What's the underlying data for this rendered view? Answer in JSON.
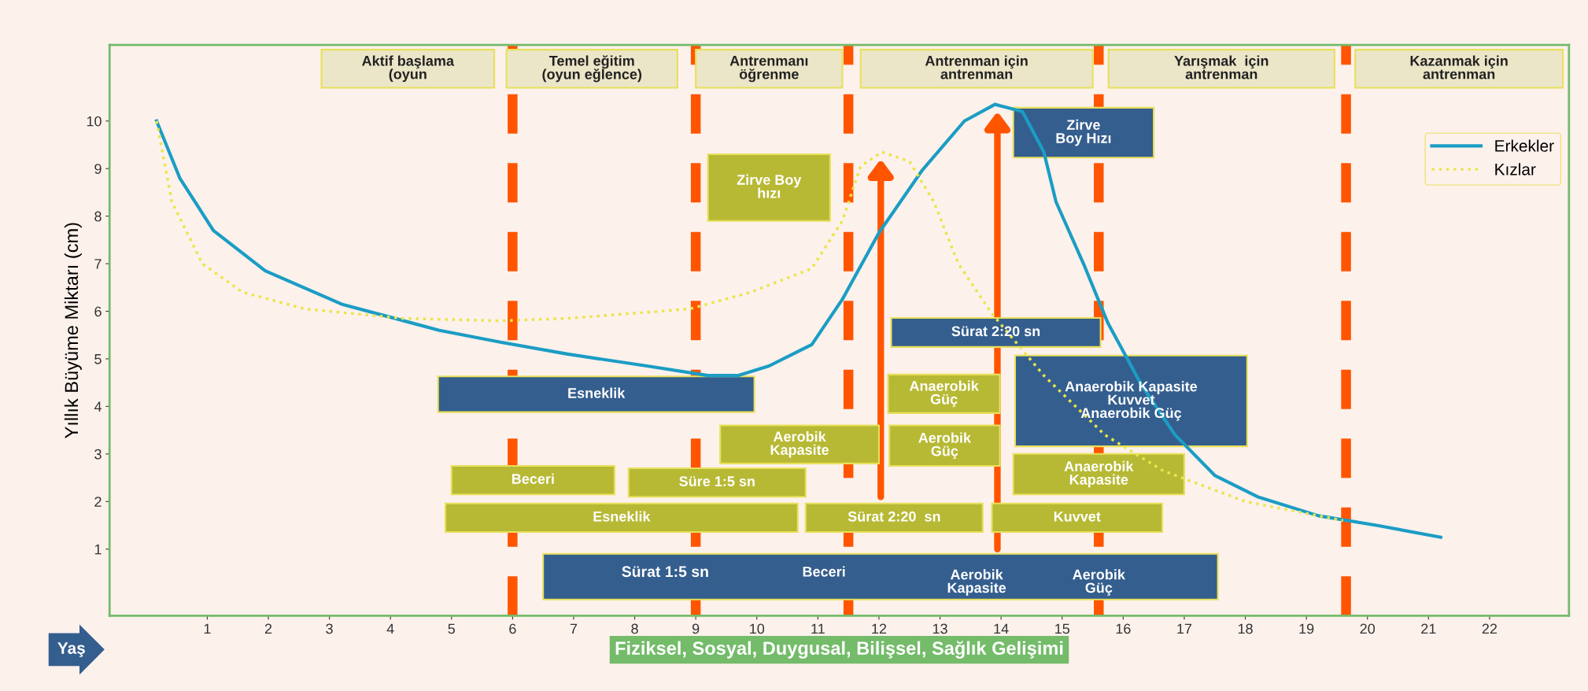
{
  "chart_data": {
    "type": "line",
    "ylabel": "Yıllık Büyüme Miktarı (cm)",
    "xlabel": "Fiziksel, Sosyal, Duygusal, Bilişsel, Sağlık Gelişimi",
    "xlim": [
      -0.6,
      23.3
    ],
    "xticks": [
      1,
      2,
      3,
      4,
      5,
      6,
      7,
      8,
      9,
      10,
      11,
      12,
      13,
      14,
      15,
      16,
      17,
      18,
      19,
      20,
      21,
      22
    ],
    "ylim": [
      -0.4,
      11.6
    ],
    "yticks": [
      1,
      2,
      3,
      4,
      5,
      6,
      7,
      8,
      9,
      10
    ],
    "grid": false,
    "legend": "right",
    "series": [
      {
        "name": "Erkekler",
        "color": "#1b9dc4",
        "line_style": "solid",
        "x": [
          0.17,
          0.55,
          1.1,
          1.95,
          3.2,
          4.8,
          5.8,
          6.9,
          8.2,
          9.2,
          9.7,
          10.2,
          10.9,
          11.4,
          12.0,
          12.7,
          13.4,
          13.9,
          14.35,
          14.7,
          14.9,
          15.35,
          15.75,
          16.3,
          16.85,
          17.5,
          18.2,
          19.2,
          20.15,
          21.2
        ],
        "values": [
          10,
          8.8,
          7.7,
          6.85,
          6.15,
          5.6,
          5.35,
          5.1,
          4.85,
          4.65,
          4.65,
          4.85,
          5.3,
          6.25,
          7.65,
          8.95,
          10,
          10.35,
          10.2,
          9.35,
          8.3,
          7,
          5.75,
          4.45,
          3.4,
          2.55,
          2.1,
          1.7,
          1.5,
          1.25
        ]
      },
      {
        "name": "Kızlar",
        "color": "#e9e54a",
        "line_style": "dotted",
        "x": [
          0.17,
          0.42,
          0.92,
          1.58,
          2.6,
          4.2,
          5.8,
          6.9,
          8.9,
          9.9,
          10.9,
          11.4,
          11.7,
          12.05,
          12.5,
          12.9,
          13.3,
          13.85,
          14.7,
          15.7,
          16.65,
          18.0,
          19.2,
          19.6
        ],
        "values": [
          10,
          8.3,
          7,
          6.4,
          6.05,
          5.85,
          5.8,
          5.85,
          6.05,
          6.4,
          6.9,
          7.9,
          9.05,
          9.35,
          9.15,
          8.3,
          7,
          5.95,
          4.65,
          3.4,
          2.65,
          2,
          1.7,
          1.6
        ]
      }
    ],
    "ref_lines": [
      {
        "axis": "x",
        "value": 6,
        "color": "#ff5500",
        "line_style": "dashed"
      },
      {
        "axis": "x",
        "value": 9,
        "color": "#ff5500",
        "line_style": "dashed"
      },
      {
        "axis": "x",
        "value": 11.5,
        "color": "#ff5500",
        "line_style": "dashed"
      },
      {
        "axis": "x",
        "value": 15.6,
        "color": "#ff5500",
        "line_style": "dashed"
      },
      {
        "axis": "x",
        "value": 19.65,
        "color": "#ff5500",
        "line_style": "dashed"
      }
    ],
    "annotations": [
      "Aktif başlama\n(oyun",
      "Temel eğitim\n(oyun eğlence)",
      "Antrenmanı\nöğrenme",
      "Antrenman için\nantrenman",
      "Yarışmak  için\nantrenman",
      "Kazanmak için\nantrenman",
      "Zirve Boy\nhızı",
      "Zirve\nBoy Hızı",
      "Esneklik",
      "Sürat 2:20 sn",
      "Anaerobik Kapasite\nKuvvet\nAnaerobik Güç",
      "Aerobik\nKapasite",
      "Anaerobik\nGüç",
      "Aerobik\nGüç",
      "Beceri",
      "Süre 1:5 sn",
      "Esneklik",
      "Sürat 2:20  sn",
      "Kuvvet",
      "Anaerobik\nKapasite",
      "Sürat 1:5 sn",
      "Beceri",
      "Aerobik\nKapasite",
      "Aerobik\nGüç",
      "Yaş"
    ]
  }
}
